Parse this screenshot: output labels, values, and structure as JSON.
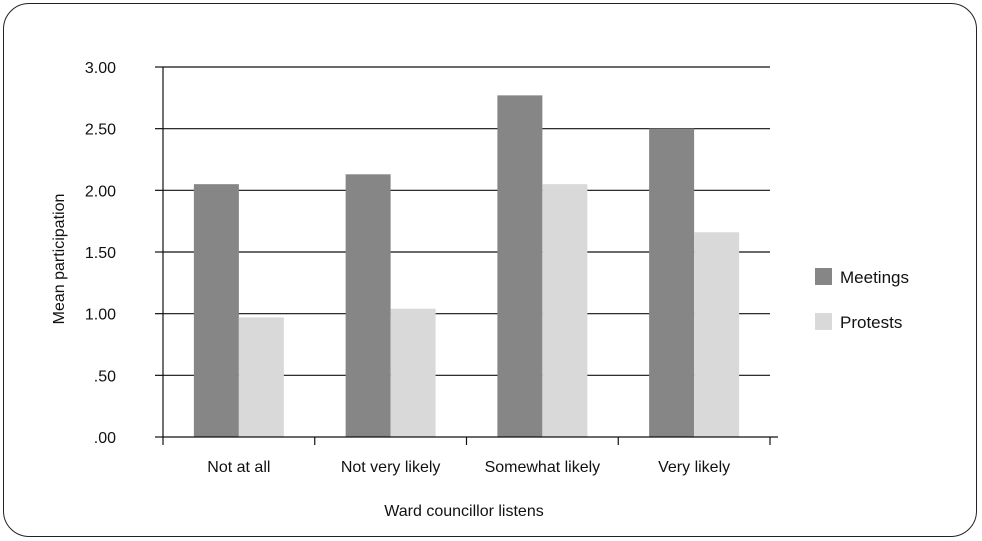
{
  "chart_data": {
    "type": "bar",
    "categories": [
      "Not at all",
      "Not very likely",
      "Somewhat likely",
      "Very likely"
    ],
    "series": [
      {
        "name": "Meetings",
        "values": [
          2.05,
          2.13,
          2.77,
          2.5
        ],
        "color": "#868686"
      },
      {
        "name": "Protests",
        "values": [
          0.97,
          1.04,
          2.05,
          1.66
        ],
        "color": "#d9d9d9"
      }
    ],
    "xlabel": "Ward councillor listens",
    "ylabel": "Mean participation",
    "ylim": [
      0,
      3
    ],
    "yticks": [
      0,
      0.5,
      1,
      1.5,
      2,
      2.5,
      3
    ],
    "ytick_labels": [
      ".00",
      ".50",
      "1.00",
      "1.50",
      "2.00",
      "2.50",
      "3.00"
    ],
    "grid": true,
    "legend_position": "right"
  }
}
